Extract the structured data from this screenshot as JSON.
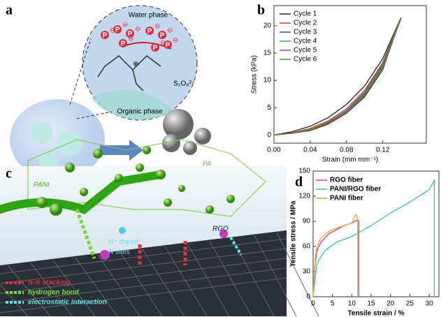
{
  "figure": {
    "panel_labels": [
      "a",
      "b",
      "c",
      "d"
    ],
    "panel_a": {
      "water_phase": "Water phase",
      "organic_phase": "Organic phase",
      "oxidant": "S₂O₈²⁻",
      "phosphate": "P",
      "charge_minus": "⊖",
      "charge_plus": "⊕"
    },
    "panel_c": {
      "pani": "PANI",
      "pa": "PA",
      "doped_line1": "H⁺ doped",
      "doped_line2": "N sites",
      "rgo": "RGO",
      "legend": [
        "π-π stacking",
        "hydrogen bond",
        "electrostatic interaction"
      ]
    }
  },
  "chart_data": [
    {
      "type": "line",
      "xlabel": "Strain (mm mm⁻¹)",
      "ylabel": "Stress (kPa)",
      "x": [
        0,
        0.02,
        0.04,
        0.06,
        0.08,
        0.1,
        0.12,
        0.14,
        0.12,
        0.1,
        0.08,
        0.06,
        0.04,
        0.02,
        0
      ],
      "xlim": [
        0,
        0.168
      ],
      "xticks": [
        {
          "value": 0,
          "label": "0.00"
        },
        0.04,
        0.08,
        0.12
      ],
      "ylim": [
        -1.5,
        23.7
      ],
      "yticks": [
        0,
        5,
        10,
        15,
        20
      ],
      "series": [
        {
          "name": "Cycle 1",
          "color": "#222222",
          "values": [
            0,
            0.6,
            1.6,
            3.2,
            5.6,
            9,
            14,
            21.5,
            12,
            7,
            4,
            2,
            0.8,
            0.3,
            0
          ]
        },
        {
          "name": "Cycle 2",
          "color": "#e0343c",
          "values": [
            0,
            0.4,
            1.2,
            2.6,
            4.8,
            8.2,
            13.3,
            21.5,
            12.2,
            7.2,
            4.1,
            2.1,
            0.9,
            0.3,
            0
          ]
        },
        {
          "name": "Cycle 3",
          "color": "#3b4bb0",
          "values": [
            0,
            0.3,
            1,
            2.4,
            4.5,
            7.9,
            13,
            21.4,
            12.3,
            7.3,
            4.2,
            2.2,
            0.9,
            0.3,
            0
          ]
        },
        {
          "name": "Cycle 4",
          "color": "#3aa58c",
          "values": [
            0,
            0.3,
            1,
            2.3,
            4.4,
            7.8,
            12.9,
            21.4,
            12.3,
            7.3,
            4.2,
            2.2,
            0.9,
            0.3,
            0
          ]
        },
        {
          "name": "Cycle 5",
          "color": "#a23bb0",
          "values": [
            0,
            0.3,
            0.9,
            2.2,
            4.3,
            7.7,
            12.8,
            21.3,
            12.4,
            7.4,
            4.3,
            2.2,
            0.9,
            0.3,
            0
          ]
        },
        {
          "name": "Cycle 6",
          "color": "#4e8a2a",
          "values": [
            0,
            0.3,
            0.9,
            2.2,
            4.3,
            7.6,
            12.7,
            21.3,
            12.4,
            7.4,
            4.3,
            2.3,
            1,
            0.3,
            0
          ]
        }
      ]
    },
    {
      "type": "line",
      "xlabel": "Tensile strain / %",
      "ylabel": "Tensile stress / MPa",
      "xlim": [
        0,
        32.5
      ],
      "xticks": [
        0,
        5,
        10,
        15,
        20,
        25,
        30
      ],
      "ylim": [
        0,
        150
      ],
      "yticks": [
        0,
        30,
        60,
        90,
        120,
        150
      ],
      "series": [
        {
          "name": "RGO fiber",
          "color": "#d9407a",
          "x": [
            0,
            0.5,
            1,
            2,
            4,
            6,
            8,
            10,
            11.5,
            11.8,
            11.8
          ],
          "values": [
            0,
            40,
            55,
            65,
            75,
            80,
            85,
            88,
            92,
            90,
            0
          ]
        },
        {
          "name": "PANI/RGO fiber",
          "color": "#3cbfae",
          "x": [
            0,
            1,
            3,
            6,
            10,
            15,
            20,
            25,
            30,
            31.2,
            31.3,
            31.3
          ],
          "values": [
            0,
            40,
            55,
            65,
            72,
            85,
            100,
            113,
            128,
            138,
            140,
            0
          ]
        },
        {
          "name": "PANI fiber",
          "color": "#eea63a",
          "x": [
            0,
            0.5,
            1,
            2,
            4,
            6,
            8,
            10,
            11,
            11.5,
            11.5
          ],
          "values": [
            0,
            45,
            60,
            70,
            78,
            82,
            85,
            88,
            98,
            95,
            0
          ]
        }
      ]
    }
  ]
}
